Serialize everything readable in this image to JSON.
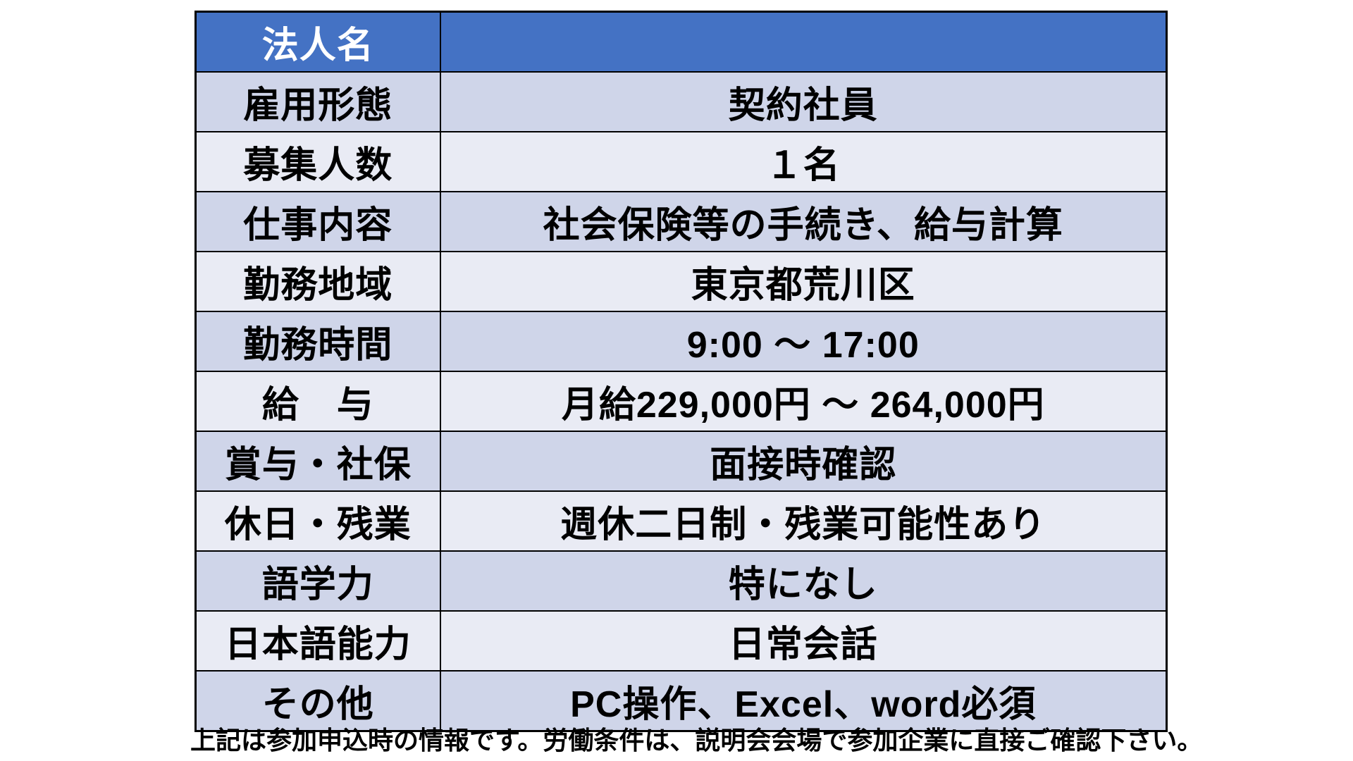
{
  "colors": {
    "header_bg": "#4472C4",
    "header_text": "#FFFFFF",
    "row_dark_bg": "#CFD5E9",
    "row_light_bg": "#E9EBF4",
    "border": "#000000",
    "body_text": "#000000",
    "page_bg": "#FFFFFF"
  },
  "table": {
    "header": {
      "label": "法人名",
      "value": ""
    },
    "rows": [
      {
        "label": "雇用形態",
        "value": "契約社員"
      },
      {
        "label": "募集人数",
        "value": "１名"
      },
      {
        "label": "仕事内容",
        "value": "社会保険等の手続き、給与計算"
      },
      {
        "label": "勤務地域",
        "value": "東京都荒川区"
      },
      {
        "label": "勤務時間",
        "value": "9:00 ～ 17:00"
      },
      {
        "label": "給　与",
        "value": "月給229,000円 ～ 264,000円"
      },
      {
        "label": "賞与・社保",
        "value": "面接時確認"
      },
      {
        "label": "休日・残業",
        "value": "週休二日制・残業可能性あり"
      },
      {
        "label": "語学力",
        "value": "特になし"
      },
      {
        "label": "日本語能力",
        "value": "日常会話"
      },
      {
        "label": "その他",
        "value": "PC操作、Excel、word必須"
      }
    ]
  },
  "footer": {
    "note": "上記は参加申込時の情報です。労働条件は、説明会会場で参加企業に直接ご確認下さい。"
  }
}
